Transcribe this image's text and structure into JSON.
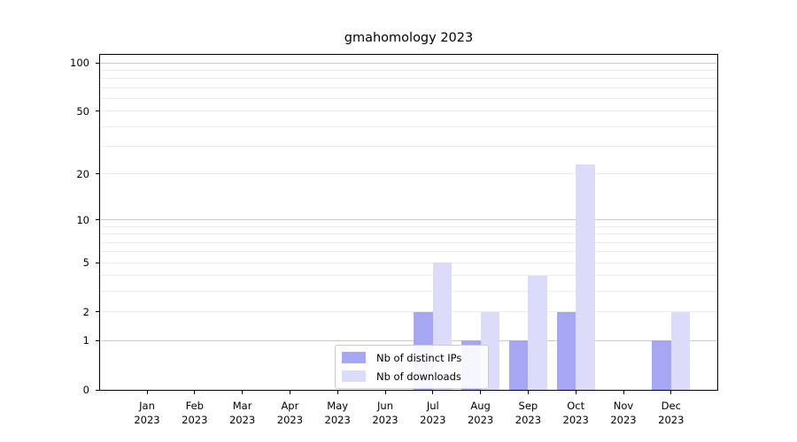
{
  "chart_data": {
    "type": "bar",
    "title": "gmahomology 2023",
    "categories": [
      "Jan",
      "Feb",
      "Mar",
      "Apr",
      "May",
      "Jun",
      "Jul",
      "Aug",
      "Sep",
      "Oct",
      "Nov",
      "Dec"
    ],
    "category_year": "2023",
    "series": [
      {
        "name": "Nb of distinct IPs",
        "color": "#a6a6f2",
        "values": [
          0,
          0,
          0,
          0,
          0,
          0,
          2,
          1,
          1,
          2,
          0,
          1
        ]
      },
      {
        "name": "Nb of downloads",
        "color": "#dadcfa",
        "values": [
          0,
          0,
          0,
          0,
          0,
          0,
          5,
          2,
          4,
          23,
          0,
          2
        ]
      }
    ],
    "y_scale": "log10(1+y)",
    "y_ticks": [
      0,
      1,
      2,
      5,
      10,
      20,
      50,
      100
    ],
    "y_major_gridlines": [
      1,
      10,
      100
    ],
    "y_minor_gridlines": [
      2,
      3,
      4,
      5,
      6,
      7,
      8,
      9,
      20,
      30,
      40,
      50,
      60,
      70,
      80,
      90
    ],
    "ylim_top_value": 113,
    "grid": "both",
    "legend_position": "lower center"
  },
  "colors": {
    "background": "#ffffff",
    "axis_spine": "#000000",
    "tick_text": "#000000",
    "major_grid": "#c9c9c9",
    "minor_grid": "#ececec",
    "legend_border": "#cccccc",
    "legend_background": "#ffffff"
  }
}
